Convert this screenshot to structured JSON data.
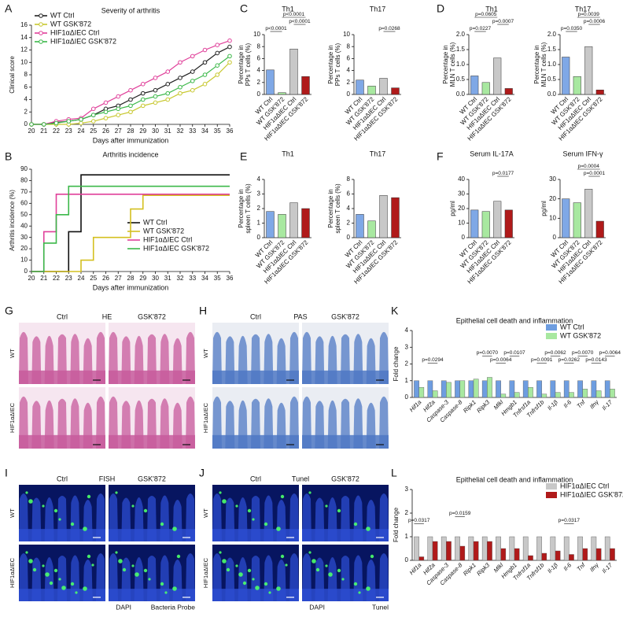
{
  "panel_labels": [
    "A",
    "B",
    "C",
    "D",
    "E",
    "F",
    "G",
    "H",
    "K",
    "I",
    "J",
    "L"
  ],
  "chart_data": [
    {
      "type": "line",
      "title": "Severity of arthritis",
      "ylabel": [
        "Clinical score"
      ],
      "xlabel": "Days after immunization",
      "x": [
        20,
        21,
        22,
        23,
        24,
        25,
        26,
        27,
        28,
        29,
        30,
        31,
        32,
        33,
        34,
        35,
        36
      ],
      "xlim": [
        20,
        36
      ],
      "xticks": [
        20,
        21,
        22,
        23,
        24,
        25,
        26,
        27,
        28,
        29,
        30,
        31,
        32,
        33,
        34,
        35,
        36
      ],
      "ylim": [
        0,
        16
      ],
      "yticks": [
        0,
        2,
        4,
        6,
        8,
        10,
        12,
        14,
        16
      ],
      "legend": "upper left",
      "series": [
        {
          "name": "WT Ctrl",
          "color": "#222222",
          "values": [
            0,
            0,
            0.3,
            0.5,
            0.8,
            1.5,
            2.5,
            3,
            4,
            5,
            5.5,
            6.5,
            7.5,
            8.5,
            10,
            11.5,
            12.5
          ]
        },
        {
          "name": "WT GSK'872",
          "color": "#c8c830",
          "values": [
            0,
            0,
            0,
            0,
            0.2,
            0.5,
            1,
            1.5,
            2,
            3,
            3.5,
            4,
            5,
            5.5,
            6.5,
            8,
            10
          ]
        },
        {
          "name": "HIF1αΔIEC Ctrl",
          "color": "#e0409a",
          "values": [
            0,
            0,
            0.5,
            0.8,
            1,
            2.5,
            3.5,
            4.5,
            5.5,
            6.5,
            7.5,
            8.5,
            10,
            11,
            12,
            12.8,
            13.5
          ]
        },
        {
          "name": "HIF1αΔIEC GSK'872",
          "color": "#3cb84a",
          "values": [
            0,
            0,
            0.2,
            0.5,
            0.8,
            1.5,
            2,
            2.5,
            3,
            4,
            4.5,
            5,
            6,
            7,
            8,
            9.5,
            11
          ]
        }
      ]
    },
    {
      "type": "step",
      "title": "Arthritis incidence",
      "ylabel": [
        "Arthritis incidence (%)"
      ],
      "xlabel": "Days after immunization",
      "x": [
        20,
        21,
        22,
        23,
        24,
        25,
        26,
        27,
        28,
        29,
        30,
        31,
        32,
        33,
        34,
        35,
        36
      ],
      "xlim": [
        20,
        36
      ],
      "xticks": [
        20,
        21,
        22,
        23,
        24,
        25,
        26,
        27,
        28,
        29,
        30,
        31,
        32,
        33,
        34,
        35,
        36
      ],
      "ylim": [
        0,
        90
      ],
      "yticks": [
        0,
        10,
        20,
        30,
        40,
        50,
        60,
        70,
        80,
        90
      ],
      "legend": "lower right",
      "series": [
        {
          "name": "WT Ctrl",
          "color": "#111111",
          "values": [
            0,
            0,
            0,
            35,
            85,
            85,
            85,
            85,
            85,
            85,
            85,
            85,
            85,
            85,
            85,
            85,
            85
          ]
        },
        {
          "name": "WT GSK'872",
          "color": "#d4c020",
          "values": [
            0,
            0,
            0,
            0,
            10,
            30,
            30,
            30,
            55,
            67,
            67,
            67,
            67,
            67,
            67,
            67,
            67
          ]
        },
        {
          "name": "HIF1αΔIEC Ctrl",
          "color": "#e0409a",
          "values": [
            0,
            35,
            68,
            68,
            68,
            68,
            68,
            68,
            68,
            68,
            68,
            68,
            68,
            68,
            68,
            68,
            68
          ]
        },
        {
          "name": "HIF1αΔIEC GSK'872",
          "color": "#3cb84a",
          "values": [
            0,
            25,
            50,
            75,
            75,
            75,
            75,
            75,
            75,
            75,
            75,
            75,
            75,
            75,
            75,
            75,
            75
          ]
        }
      ]
    },
    {
      "type": "bar",
      "title": "Th1",
      "ylabel": [
        "Percentage in",
        "PPs T cells (%)"
      ],
      "categories": [
        "WT Ctrl",
        "WT GSK'872",
        "HIF1αΔIEC Ctrl",
        "HIF1αΔIEC GSK'872"
      ],
      "colors": [
        "#7fa8e6",
        "#a8e8a0",
        "#c8c8c8",
        "#b01a1a"
      ],
      "values": [
        4.1,
        0.3,
        7.6,
        3.0
      ],
      "ylim": [
        0,
        10
      ],
      "yticks": [
        0,
        2,
        4,
        6,
        8,
        10
      ],
      "annotations": [
        "p<0.0001",
        "p<0.0001",
        "p<0.0001"
      ]
    },
    {
      "type": "bar",
      "title": "Th17",
      "ylabel": [
        "Percentage in",
        "PPs T cells (%)"
      ],
      "categories": [
        "WT Ctrl",
        "WT GSK'872",
        "HIF1αΔIEC Ctrl",
        "HIF1αΔIEC GSK'872"
      ],
      "colors": [
        "#7fa8e6",
        "#a8e8a0",
        "#c8c8c8",
        "#b01a1a"
      ],
      "values": [
        2.4,
        1.4,
        2.7,
        1.1
      ],
      "ylim": [
        0,
        10
      ],
      "yticks": [
        0,
        2,
        4,
        6,
        8,
        10
      ],
      "annotations": [
        "p=0.0268"
      ]
    },
    {
      "type": "bar",
      "title": "Th1",
      "ylabel": [
        "Percentage in",
        "MLN T cells (%)"
      ],
      "categories": [
        "WT Ctrl",
        "WT GSK'872",
        "HIF1αΔIEC Ctrl",
        "HIF1αΔIEC GSK'872"
      ],
      "colors": [
        "#7fa8e6",
        "#a8e8a0",
        "#c8c8c8",
        "#b01a1a"
      ],
      "values": [
        0.62,
        0.4,
        1.22,
        0.2
      ],
      "ylim": [
        0,
        2
      ],
      "yticks": [
        {
          "value": 0,
          "label": "0.0"
        },
        {
          "value": 0.5,
          "label": "0.5"
        },
        {
          "value": 1,
          "label": "1.0"
        },
        {
          "value": 1.5,
          "label": "1.5"
        },
        {
          "value": 2,
          "label": "2.0"
        }
      ],
      "annotations": [
        "p=0.0227",
        "p=0.0605",
        "p=0.0007"
      ]
    },
    {
      "type": "bar",
      "title": "Th17",
      "ylabel": [
        "Percentage in",
        "MLN T cells (%)"
      ],
      "categories": [
        "WT Ctrl",
        "WT GSK'872",
        "HIF1αΔIEC Ctrl",
        "HIF1αΔIEC GSK'872"
      ],
      "colors": [
        "#7fa8e6",
        "#a8e8a0",
        "#c8c8c8",
        "#b01a1a"
      ],
      "values": [
        1.25,
        0.6,
        1.6,
        0.15
      ],
      "ylim": [
        0,
        2
      ],
      "yticks": [
        {
          "value": 0,
          "label": "0.0"
        },
        {
          "value": 0.5,
          "label": "0.5"
        },
        {
          "value": 1,
          "label": "1.0"
        },
        {
          "value": 1.5,
          "label": "1.5"
        },
        {
          "value": 2,
          "label": "2.0"
        }
      ],
      "annotations": [
        "p=0.0350",
        "p=0.0039",
        "p=0.0006"
      ]
    },
    {
      "type": "bar",
      "title": "Th1",
      "ylabel": [
        "Percentage in",
        "spleen T cells (%)"
      ],
      "categories": [
        "WT Ctrl",
        "WT GSK'872",
        "HIF1αΔIEC Ctrl",
        "HIF1αΔIEC GSK'872"
      ],
      "colors": [
        "#7fa8e6",
        "#a8e8a0",
        "#c8c8c8",
        "#b01a1a"
      ],
      "values": [
        1.8,
        1.6,
        2.4,
        2.0
      ],
      "ylim": [
        0,
        4
      ],
      "yticks": [
        0,
        1,
        2,
        3,
        4
      ],
      "annotations": []
    },
    {
      "type": "bar",
      "title": "Th17",
      "ylabel": [
        "Percentage in",
        "spleen T cells (%)"
      ],
      "categories": [
        "WT Ctrl",
        "WT GSK'872",
        "HIF1αΔIEC Ctrl",
        "HIF1αΔIEC GSK'872"
      ],
      "colors": [
        "#7fa8e6",
        "#a8e8a0",
        "#c8c8c8",
        "#b01a1a"
      ],
      "values": [
        3.2,
        2.3,
        5.8,
        5.5
      ],
      "ylim": [
        0,
        8
      ],
      "yticks": [
        0,
        2,
        4,
        6,
        8
      ],
      "annotations": []
    },
    {
      "type": "bar",
      "title": "Serum IL-17A",
      "ylabel": [
        "pg/ml"
      ],
      "categories": [
        "WT Ctrl",
        "WT GSK'872",
        "HIF1αΔIEC Ctrl",
        "HIF1αΔIEC GSK'872"
      ],
      "colors": [
        "#7fa8e6",
        "#a8e8a0",
        "#c8c8c8",
        "#b01a1a"
      ],
      "values": [
        19,
        18,
        25,
        19
      ],
      "ylim": [
        0,
        40
      ],
      "yticks": [
        0,
        10,
        20,
        30,
        40
      ],
      "annotations": [
        "p=0.0177"
      ]
    },
    {
      "type": "bar",
      "title": "Serum IFN-γ",
      "ylabel": [
        "pg/ml"
      ],
      "categories": [
        "WT Ctrl",
        "WT GSK'872",
        "HIF1αΔIEC Ctrl",
        "HIF1αΔIEC GSK'872"
      ],
      "colors": [
        "#7fa8e6",
        "#a8e8a0",
        "#c8c8c8",
        "#b01a1a"
      ],
      "values": [
        20,
        18,
        25,
        8.5
      ],
      "ylim": [
        0,
        30
      ],
      "yticks": [
        0,
        10,
        20,
        30
      ],
      "annotations": [
        "p=0.0004",
        "p=0.0001"
      ]
    },
    {
      "type": "grouped_bar",
      "title": "Epithelial cell death and inflammation",
      "ylabel": [
        "Fold change"
      ],
      "legend": "upper right",
      "categories": [
        "Hif1a",
        "Hif2a",
        "Caspase-3",
        "Caspase-8",
        "Ripk1",
        "Ripk3",
        "Mlkl",
        "Hmgb1",
        "Tnfrsf1a",
        "Tnfrsf1b",
        "Il-1β",
        "Il-6",
        "Tnf",
        "Ifnγ",
        "Il-17"
      ],
      "ylim": [
        0,
        4
      ],
      "yticks": [
        0,
        1,
        2,
        3,
        4
      ],
      "series": [
        {
          "name": "WT Ctrl",
          "color": "#6e9de0",
          "values": [
            1,
            1,
            1,
            1,
            1,
            1,
            1,
            1,
            1,
            1,
            1,
            1,
            1,
            1,
            1
          ]
        },
        {
          "name": "WT GSK'872",
          "color": "#a8e8a0",
          "values": [
            0.6,
            0.4,
            0.9,
            1.0,
            1.1,
            1.2,
            0.2,
            0.3,
            0.6,
            0.2,
            0.3,
            0.3,
            0.5,
            0.4,
            0.5
          ]
        }
      ],
      "annotations": [
        "p=0.0294",
        "p=0.0070",
        "p=0.0064",
        "p=0.0107",
        "p=0.0091",
        "p=0.0062",
        "p=0.0262",
        "p=0.0070",
        "p=0.0143",
        "p=0.0064"
      ]
    },
    {
      "type": "grouped_bar",
      "title": "Epithelial cell death and inflammation",
      "ylabel": [
        "Fold change"
      ],
      "legend": "upper right",
      "categories": [
        "Hif1a",
        "Hif2a",
        "Caspase-3",
        "Caspase-8",
        "Ripk1",
        "Ripk3",
        "Mlkl",
        "Hmgb1",
        "Tnfrsf1a",
        "Tnfrsf1b",
        "Il-1β",
        "Il-6",
        "Tnf",
        "Ifnγ",
        "Il-17"
      ],
      "ylim": [
        0,
        3
      ],
      "yticks": [
        0,
        1,
        2,
        3
      ],
      "series": [
        {
          "name": "HIF1αΔIEC Ctrl",
          "color": "#c8c8c8",
          "values": [
            1,
            1,
            1,
            1,
            1,
            1,
            1,
            1,
            1,
            1,
            1,
            1,
            1,
            1,
            1
          ]
        },
        {
          "name": "HIF1αΔIEC GSK'872",
          "color": "#b01a1a",
          "values": [
            0.15,
            0.8,
            0.8,
            0.6,
            0.8,
            0.8,
            0.5,
            0.5,
            0.2,
            0.3,
            0.4,
            0.25,
            0.5,
            0.5,
            0.5
          ]
        }
      ],
      "annotations": [
        "p=0.0317",
        "p=0.0159",
        "p=0.0317"
      ]
    }
  ],
  "images": [
    {
      "title": "HE",
      "columns": [
        "Ctrl",
        "GSK'872"
      ],
      "rows": [
        "WT",
        "HIF1αΔIEC"
      ],
      "colors": {
        "background": "#f6e6f0",
        "tissue": "#c75a9c"
      }
    },
    {
      "title": "PAS",
      "columns": [
        "Ctrl",
        "GSK'872"
      ],
      "rows": [
        "WT",
        "HIF1αΔIEC"
      ],
      "colors": {
        "background": "#eaedf3",
        "tissue": "#4f78c4"
      }
    },
    {
      "title": "FISH",
      "columns": [
        "Ctrl",
        "GSK'872"
      ],
      "rows": [
        "WT",
        "HIF1αΔIEC"
      ],
      "colors": {
        "background": "#071560",
        "tissue": "#2c4cd0",
        "signal": "#4cff6a"
      },
      "stains": [
        {
          "name": "DAPI",
          "color": "#1f3fd0"
        },
        {
          "name": "Bacteria Probe",
          "color": "#2ca02c"
        }
      ]
    },
    {
      "title": "Tunel",
      "columns": [
        "Ctrl",
        "GSK'872"
      ],
      "rows": [
        "WT",
        "HIF1αΔIEC"
      ],
      "colors": {
        "background": "#071560",
        "tissue": "#2c4cd0",
        "signal": "#4cff6a"
      },
      "stains": [
        {
          "name": "DAPI",
          "color": "#1f3fd0"
        },
        {
          "name": "Tunel",
          "color": "#2ca02c"
        }
      ]
    }
  ]
}
